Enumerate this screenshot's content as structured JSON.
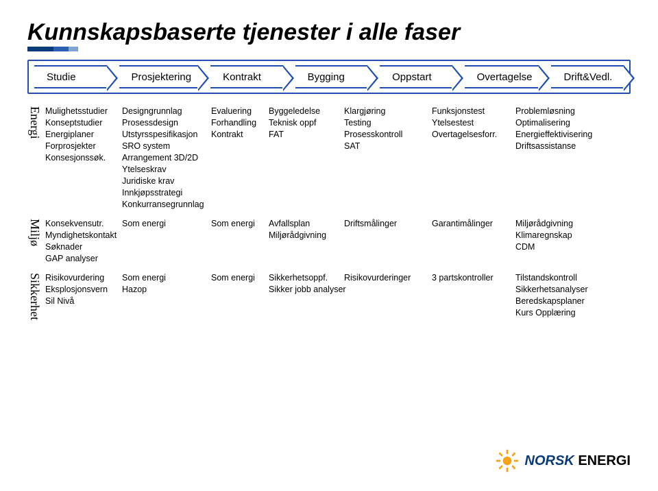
{
  "title": "Kunnskapsbaserte tjenester i alle faser",
  "colors": {
    "accent_blue": "#1f4fb0",
    "logo_navy": "#0b3a7a",
    "logo_orange": "#f6a21a",
    "bar1": "#0b3a7a",
    "bar2": "#2a5fb3",
    "bar3": "#7fa3d6"
  },
  "logo_bars": {
    "widths": [
      38,
      22,
      14
    ]
  },
  "phases": [
    "Studie",
    "Prosjektering",
    "Kontrakt",
    "Bygging",
    "Oppstart",
    "Overtagelse",
    "Drift&Vedl."
  ],
  "sections": {
    "energi": {
      "label": "Energi",
      "rows": [
        [
          "Mulighetsstudier",
          "Designgrunnlag",
          "Evaluering",
          "Byggeledelse",
          "Klargjøring",
          "Funksjonstest",
          "Problemløsning"
        ],
        [
          "Konseptstudier",
          "Prosessdesign",
          "Forhandling",
          "Teknisk oppf",
          "Testing",
          "Ytelsestest",
          "Optimalisering"
        ],
        [
          "Energiplaner",
          "Utstyrsspesifikasjon",
          "Kontrakt",
          "FAT",
          "Prosesskontroll",
          "Overtagelsesforr.",
          "Energieffektivisering"
        ],
        [
          "Forprosjekter",
          "SRO system",
          "",
          "",
          "SAT",
          "",
          "Driftsassistanse"
        ],
        [
          "Konsesjonssøk.",
          "Arrangement 3D/2D",
          "",
          "",
          "",
          "",
          ""
        ],
        [
          "",
          "Ytelseskrav",
          "",
          "",
          "",
          "",
          ""
        ],
        [
          "",
          "Juridiske krav",
          "",
          "",
          "",
          "",
          ""
        ],
        [
          "",
          "Innkjøpsstrategi",
          "",
          "",
          "",
          "",
          ""
        ],
        [
          "",
          "Konkurransegrunnlag",
          "",
          "",
          "",
          "",
          ""
        ]
      ]
    },
    "miljo": {
      "label": "Miljø",
      "rows": [
        [
          "Konsekvensutr.",
          "Som energi",
          "Som energi",
          "Avfallsplan",
          "Driftsmålinger",
          "Garantimålinger",
          "Miljørådgivning"
        ],
        [
          "Myndighetskontakt",
          "",
          "",
          "Miljørådgivning",
          "",
          "",
          "Klimaregnskap"
        ],
        [
          "Søknader",
          "",
          "",
          "",
          "",
          "",
          "CDM"
        ],
        [
          "GAP analyser",
          "",
          "",
          "",
          "",
          "",
          ""
        ]
      ]
    },
    "sikkerhet": {
      "label": "Sikkerhet",
      "rows": [
        [
          "Risikovurdering",
          "Som energi",
          "Som energi",
          "Sikkerhetsoppf.",
          "Risikovurderinger",
          "3 partskontroller",
          "Tilstandskontroll"
        ],
        [
          "Eksplosjonsvern",
          "Hazop",
          "",
          "Sikker jobb analyser",
          "",
          "",
          "Sikkerhetsanalyser"
        ],
        [
          "Sil Nivå",
          "",
          "",
          "",
          "",
          "",
          "Beredskapsplaner"
        ],
        [
          "",
          "",
          "",
          "",
          "",
          "",
          "Kurs Opplæring"
        ]
      ]
    }
  },
  "footer": {
    "brand_part1": "NORSK",
    "brand_part2": "ENERGI"
  }
}
